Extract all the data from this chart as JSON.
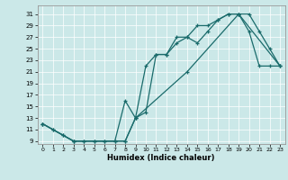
{
  "xlabel": "Humidex (Indice chaleur)",
  "bg_color": "#cbe8e8",
  "line_color": "#1a6b6b",
  "xlim": [
    -0.5,
    23.5
  ],
  "ylim": [
    8.5,
    32.5
  ],
  "xticks": [
    0,
    1,
    2,
    3,
    4,
    5,
    6,
    7,
    8,
    9,
    10,
    11,
    12,
    13,
    14,
    15,
    16,
    17,
    18,
    19,
    20,
    21,
    22,
    23
  ],
  "yticks": [
    9,
    11,
    13,
    15,
    17,
    19,
    21,
    23,
    25,
    27,
    29,
    31
  ],
  "line1_x": [
    0,
    1,
    2,
    3,
    4,
    5,
    6,
    7,
    8,
    9,
    10,
    11,
    12,
    13,
    14,
    15,
    16,
    17,
    18,
    19,
    20,
    21,
    22,
    23
  ],
  "line1_y": [
    12,
    11,
    10,
    9,
    9,
    9,
    9,
    9,
    9,
    13,
    14,
    24,
    24,
    26,
    27,
    26,
    28,
    30,
    31,
    31,
    31,
    28,
    25,
    22
  ],
  "line2_x": [
    0,
    1,
    2,
    3,
    4,
    5,
    6,
    7,
    8,
    9,
    10,
    11,
    12,
    13,
    14,
    15,
    16,
    17,
    18,
    19,
    20,
    21,
    22,
    23
  ],
  "line2_y": [
    12,
    11,
    10,
    9,
    9,
    9,
    9,
    9,
    16,
    13,
    22,
    24,
    24,
    27,
    27,
    29,
    29,
    30,
    31,
    31,
    28,
    22,
    22,
    22
  ],
  "line3_x": [
    0,
    3,
    8,
    9,
    14,
    19,
    23
  ],
  "line3_y": [
    12,
    9,
    9,
    13,
    21,
    31,
    22
  ]
}
